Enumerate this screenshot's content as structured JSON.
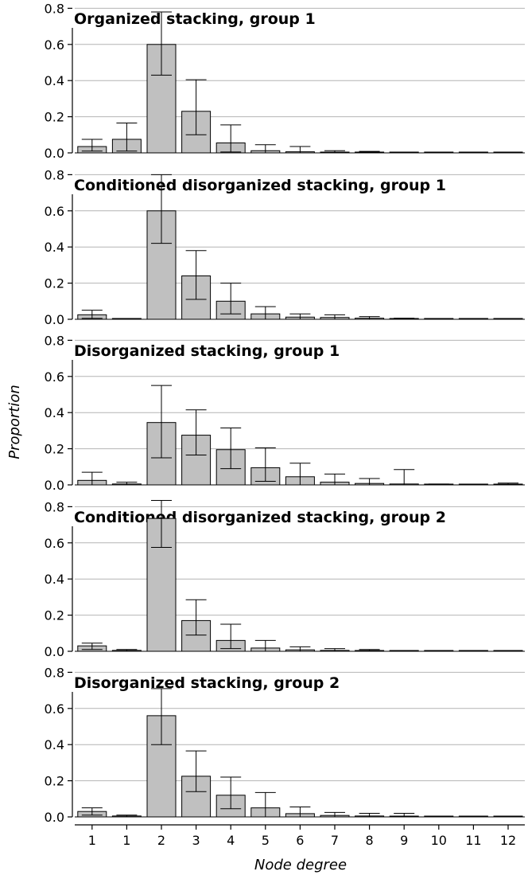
{
  "figure": {
    "ylabel": "Proportion",
    "xlabel": "Node degree",
    "x_tick_labels": [
      "1",
      "1",
      "2",
      "3",
      "4",
      "5",
      "6",
      "7",
      "8",
      "9",
      "10",
      "11",
      "12"
    ],
    "y_tick_labels": [
      "0.0",
      "0.2",
      "0.4",
      "0.6",
      "0.8"
    ],
    "bar_color": "#c0c0c0",
    "bar_edge_color": "#000000",
    "grid_color": "#b4b4b4"
  },
  "chart_data": [
    {
      "type": "bar",
      "title": "Organized stacking, group 1",
      "categories": [
        "1",
        "1",
        "2",
        "3",
        "4",
        "5",
        "6",
        "7",
        "8",
        "9",
        "10",
        "11",
        "12"
      ],
      "values": [
        0.035,
        0.075,
        0.6,
        0.23,
        0.055,
        0.012,
        0.006,
        0.003,
        0.002,
        0.001,
        0.0,
        0.0,
        0.0
      ],
      "error_low": [
        0.01,
        0.01,
        0.43,
        0.1,
        0.005,
        0.0,
        0.0,
        0.0,
        0.0,
        0.0,
        0.0,
        0.0,
        0.0
      ],
      "error_high": [
        0.075,
        0.165,
        0.78,
        0.405,
        0.155,
        0.045,
        0.035,
        0.012,
        0.008,
        0.003,
        0.0,
        0.0,
        0.0
      ],
      "ylim": [
        0,
        0.85
      ],
      "grid": true
    },
    {
      "type": "bar",
      "title": "Conditioned disorganized stacking, group 1",
      "categories": [
        "1",
        "1",
        "2",
        "3",
        "4",
        "5",
        "6",
        "7",
        "8",
        "9",
        "10",
        "11",
        "12"
      ],
      "values": [
        0.025,
        0.0,
        0.6,
        0.24,
        0.1,
        0.03,
        0.012,
        0.01,
        0.006,
        0.003,
        0.0,
        0.0,
        0.0
      ],
      "error_low": [
        0.005,
        0.0,
        0.42,
        0.11,
        0.03,
        0.0,
        0.0,
        0.0,
        0.0,
        0.0,
        0.0,
        0.0,
        0.0
      ],
      "error_high": [
        0.05,
        0.0,
        0.8,
        0.38,
        0.2,
        0.07,
        0.03,
        0.025,
        0.015,
        0.006,
        0.0,
        0.0,
        0.0
      ],
      "ylim": [
        0,
        0.85
      ],
      "grid": true
    },
    {
      "type": "bar",
      "title": "Disorganized stacking, group 1",
      "categories": [
        "1",
        "1",
        "2",
        "3",
        "4",
        "5",
        "6",
        "7",
        "8",
        "9",
        "10",
        "11",
        "12"
      ],
      "values": [
        0.025,
        0.005,
        0.345,
        0.275,
        0.195,
        0.095,
        0.045,
        0.015,
        0.008,
        0.005,
        0.002,
        0.0,
        0.003
      ],
      "error_low": [
        0.0,
        0.0,
        0.15,
        0.165,
        0.09,
        0.02,
        0.0,
        0.0,
        0.0,
        0.0,
        0.0,
        0.0,
        0.0
      ],
      "error_high": [
        0.07,
        0.015,
        0.55,
        0.415,
        0.315,
        0.205,
        0.12,
        0.06,
        0.035,
        0.085,
        0.005,
        0.0,
        0.01
      ],
      "ylim": [
        0,
        0.85
      ],
      "grid": true
    },
    {
      "type": "bar",
      "title": "Conditioned disorganized stacking, group 2",
      "categories": [
        "1",
        "1",
        "2",
        "3",
        "4",
        "5",
        "6",
        "7",
        "8",
        "9",
        "10",
        "11",
        "12"
      ],
      "values": [
        0.03,
        0.005,
        0.735,
        0.17,
        0.06,
        0.018,
        0.008,
        0.005,
        0.003,
        0.001,
        0.0,
        0.0,
        0.0
      ],
      "error_low": [
        0.01,
        0.0,
        0.575,
        0.09,
        0.015,
        0.0,
        0.0,
        0.0,
        0.0,
        0.0,
        0.0,
        0.0,
        0.0
      ],
      "error_high": [
        0.045,
        0.01,
        0.835,
        0.285,
        0.15,
        0.06,
        0.025,
        0.015,
        0.01,
        0.004,
        0.0,
        0.0,
        0.0
      ],
      "ylim": [
        0,
        0.85
      ],
      "grid": true
    },
    {
      "type": "bar",
      "title": "Disorganized stacking, group 2",
      "categories": [
        "1",
        "1",
        "2",
        "3",
        "4",
        "5",
        "6",
        "7",
        "8",
        "9",
        "10",
        "11",
        "12"
      ],
      "values": [
        0.03,
        0.005,
        0.56,
        0.225,
        0.12,
        0.05,
        0.018,
        0.008,
        0.005,
        0.004,
        0.001,
        0.0,
        0.0
      ],
      "error_low": [
        0.01,
        0.0,
        0.4,
        0.14,
        0.045,
        0.0,
        0.0,
        0.0,
        0.0,
        0.0,
        0.0,
        0.0,
        0.0
      ],
      "error_high": [
        0.05,
        0.01,
        0.71,
        0.365,
        0.22,
        0.135,
        0.055,
        0.025,
        0.02,
        0.02,
        0.003,
        0.0,
        0.0
      ],
      "ylim": [
        0,
        0.85
      ],
      "grid": true
    }
  ]
}
